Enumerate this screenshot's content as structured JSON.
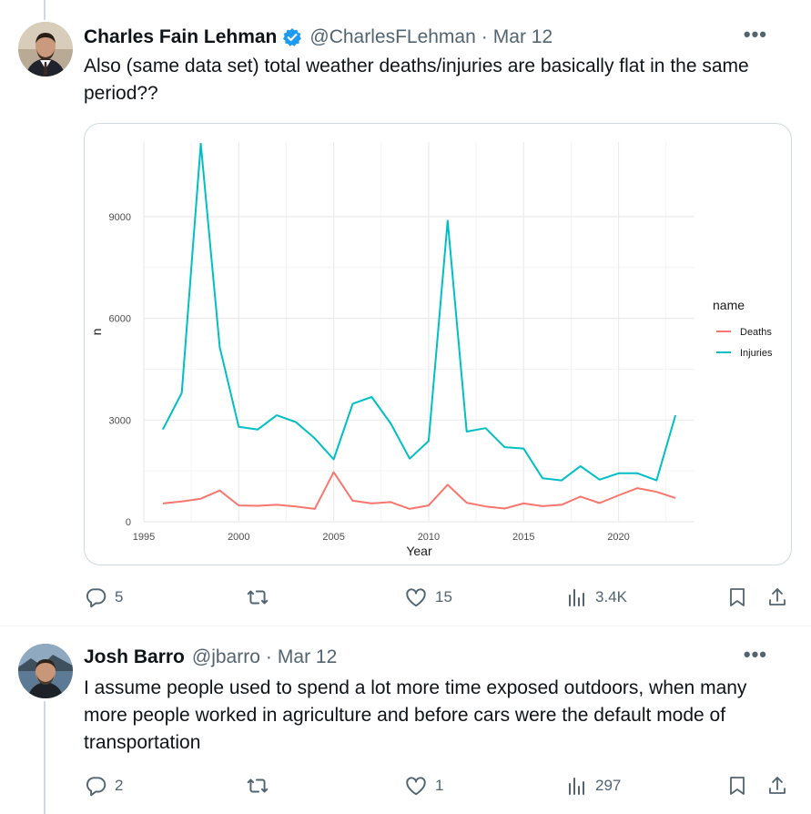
{
  "colors": {
    "accent": "#1d9bf0",
    "text_primary": "#0f1419",
    "text_secondary": "#536471",
    "deaths_series": "#f8766d",
    "injuries_series": "#00bfc4"
  },
  "tweets": [
    {
      "author_name": "Charles Fain Lehman",
      "verified": true,
      "handle": "@CharlesFLehman",
      "separator": "·",
      "date": "Mar 12",
      "more_label": "•••",
      "text": "Also (same data set) total weather deaths/injuries are basically flat in the same period??",
      "actions": {
        "replies": "5",
        "retweets": "",
        "likes": "15",
        "views": "3.4K"
      }
    },
    {
      "author_name": "Josh Barro",
      "verified": false,
      "handle": "@jbarro",
      "separator": "·",
      "date": "Mar 12",
      "more_label": "•••",
      "text": "I assume people used to spend a lot more time exposed outdoors, when many more people worked in agriculture and before cars were the default mode of transportation",
      "actions": {
        "replies": "2",
        "retweets": "",
        "likes": "1",
        "views": "297"
      }
    }
  ],
  "chart_data": {
    "type": "line",
    "title": "",
    "xlabel": "Year",
    "ylabel": "n",
    "xlim": [
      1995,
      2024
    ],
    "ylim": [
      0,
      11200
    ],
    "x_ticks": [
      1995,
      2000,
      2005,
      2010,
      2015,
      2020
    ],
    "y_ticks": [
      0,
      3000,
      6000,
      9000
    ],
    "grid": true,
    "legend": {
      "title": "name",
      "placement": "right"
    },
    "x": [
      1996,
      1997,
      1998,
      1999,
      2000,
      2001,
      2002,
      2003,
      2004,
      2005,
      2006,
      2007,
      2008,
      2009,
      2010,
      2011,
      2012,
      2013,
      2014,
      2015,
      2016,
      2017,
      2018,
      2019,
      2020,
      2021,
      2022,
      2023
    ],
    "series": [
      {
        "name": "Deaths",
        "color": "#f8766d",
        "values": [
          540,
          600,
          680,
          920,
          480,
          470,
          500,
          450,
          380,
          1460,
          620,
          540,
          580,
          380,
          480,
          1090,
          560,
          450,
          390,
          540,
          460,
          500,
          740,
          550,
          780,
          990,
          880,
          700
        ]
      },
      {
        "name": "Injuries",
        "color": "#00bfc4",
        "values": [
          2720,
          3800,
          11150,
          5150,
          2800,
          2720,
          3140,
          2940,
          2460,
          1840,
          3480,
          3680,
          2900,
          1860,
          2380,
          8880,
          2660,
          2760,
          2200,
          2160,
          1280,
          1220,
          1640,
          1240,
          1430,
          1430,
          1220,
          3140
        ]
      }
    ]
  }
}
